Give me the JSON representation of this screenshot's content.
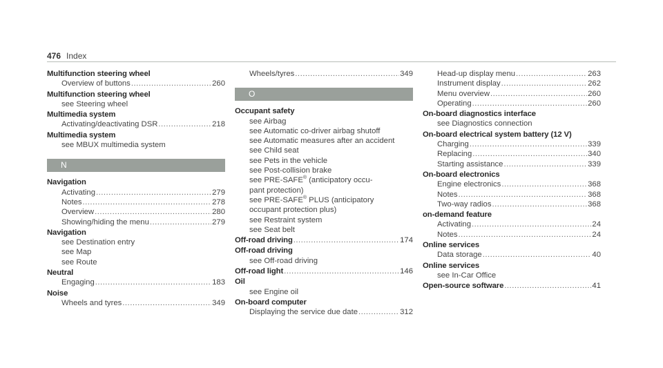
{
  "header": {
    "page_number": "476",
    "section_title": "Index"
  },
  "columns": [
    {
      "blocks": [
        {
          "type": "entry",
          "term": "Multifunction steering wheel",
          "subs": [
            {
              "label": "Overview of buttons",
              "page": "260"
            }
          ]
        },
        {
          "type": "entry",
          "term": "Multifunction steering wheel",
          "subs": [
            {
              "label": "see Steering wheel"
            }
          ]
        },
        {
          "type": "entry",
          "term": "Multimedia system",
          "subs": [
            {
              "label": "Activating/deactivating DSR",
              "page": "218"
            }
          ]
        },
        {
          "type": "entry",
          "term": "Multimedia system",
          "subs": [
            {
              "label": "see MBUX multimedia system"
            }
          ]
        },
        {
          "type": "letter",
          "letter": "N"
        },
        {
          "type": "entry",
          "term": "Navigation",
          "subs": [
            {
              "label": "Activating",
              "page": "279"
            },
            {
              "label": "Notes",
              "page": "278"
            },
            {
              "label": "Overview",
              "page": "280"
            },
            {
              "label": "Showing/hiding the menu",
              "page": "279"
            }
          ]
        },
        {
          "type": "entry",
          "term": "Navigation",
          "subs": [
            {
              "label": "see Destination entry"
            },
            {
              "label": "see Map"
            },
            {
              "label": "see Route"
            }
          ]
        },
        {
          "type": "entry",
          "term": "Neutral",
          "subs": [
            {
              "label": "Engaging",
              "page": "183"
            }
          ]
        },
        {
          "type": "entry",
          "term": "Noise",
          "subs": [
            {
              "label": "Wheels and tyres",
              "page": "349"
            }
          ]
        }
      ]
    },
    {
      "blocks": [
        {
          "type": "entry",
          "term": "",
          "subs": [
            {
              "label": "Wheels/tyres",
              "page": "349"
            }
          ]
        },
        {
          "type": "letter",
          "letter": "O"
        },
        {
          "type": "entry",
          "term": "Occupant safety",
          "subs": [
            {
              "label": "see Airbag"
            },
            {
              "label": "see Automatic co-driver airbag shutoff"
            },
            {
              "label": "see Automatic measures after an accident"
            },
            {
              "label": "see Child seat"
            },
            {
              "label": "see Pets in the vehicle"
            },
            {
              "label": "see Post-collision brake"
            },
            {
              "label": "see PRE-SAFE",
              "sup": "®",
              "suffix": " (anticipatory occu-"
            },
            {
              "label": "pant protection)"
            },
            {
              "label": "see PRE-SAFE",
              "sup": "®",
              "suffix": " PLUS (anticipatory"
            },
            {
              "label": "occupant protection plus)"
            },
            {
              "label": "see Restraint system"
            },
            {
              "label": "see Seat belt"
            }
          ]
        },
        {
          "type": "entry",
          "term": "Off-road driving",
          "page": "174",
          "subs": []
        },
        {
          "type": "entry",
          "term": "Off-road driving",
          "subs": [
            {
              "label": "see Off-road driving"
            }
          ]
        },
        {
          "type": "entry",
          "term": "Off-road light",
          "page": "146",
          "subs": []
        },
        {
          "type": "entry",
          "term": "Oil",
          "subs": [
            {
              "label": "see Engine oil"
            }
          ]
        },
        {
          "type": "entry",
          "term": "On-board computer",
          "subs": [
            {
              "label": "Displaying the service due date",
              "page": "312"
            }
          ]
        }
      ]
    },
    {
      "blocks": [
        {
          "type": "entry",
          "term": "",
          "subs": [
            {
              "label": "Head-up display menu",
              "page": "263"
            },
            {
              "label": "Instrument display",
              "page": "262"
            },
            {
              "label": "Menu overview",
              "page": "260"
            },
            {
              "label": "Operating",
              "page": "260"
            }
          ]
        },
        {
          "type": "entry",
          "term": "On-board diagnostics interface",
          "subs": [
            {
              "label": "see Diagnostics connection"
            }
          ]
        },
        {
          "type": "entry",
          "term": "On-board electrical system battery (12 V)",
          "subs": [
            {
              "label": "Charging",
              "page": "339"
            },
            {
              "label": "Replacing",
              "page": "340"
            },
            {
              "label": "Starting assistance",
              "page": "339"
            }
          ]
        },
        {
          "type": "entry",
          "term": "On-board electronics",
          "subs": [
            {
              "label": "Engine electronics",
              "page": "368"
            },
            {
              "label": "Notes",
              "page": "368"
            },
            {
              "label": "Two-way radios",
              "page": "368"
            }
          ]
        },
        {
          "type": "entry",
          "term": "on-demand feature",
          "subs": [
            {
              "label": "Activating",
              "page": "24"
            },
            {
              "label": "Notes",
              "page": "24"
            }
          ]
        },
        {
          "type": "entry",
          "term": "Online services",
          "subs": [
            {
              "label": "Data storage",
              "page": "40"
            }
          ]
        },
        {
          "type": "entry",
          "term": "Online services",
          "subs": [
            {
              "label": "see In-Car Office"
            }
          ]
        },
        {
          "type": "entry",
          "term": "Open-source software",
          "page": "41",
          "subs": []
        }
      ]
    }
  ]
}
